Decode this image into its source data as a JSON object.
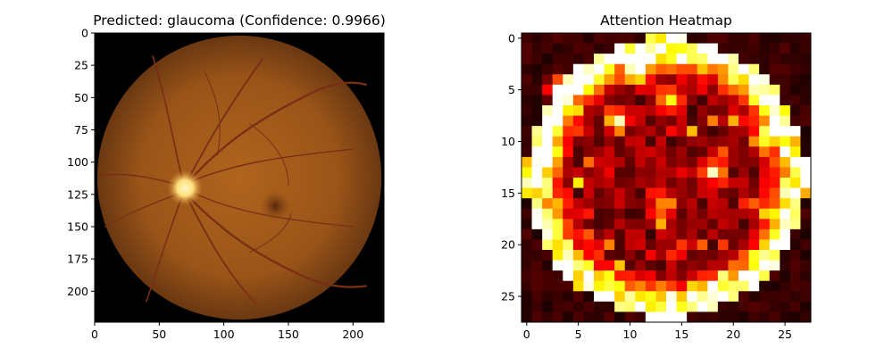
{
  "chart_data": [
    {
      "type": "image",
      "title": "Predicted: glaucoma (Confidence: 0.9966)",
      "xlim": [
        0,
        224
      ],
      "ylim": [
        224,
        0
      ],
      "xticks": [
        "0",
        "50",
        "100",
        "150",
        "200"
      ],
      "yticks": [
        "0",
        "25",
        "50",
        "75",
        "100",
        "125",
        "150",
        "175",
        "200"
      ],
      "image_content": {
        "kind": "retinal fundus photograph",
        "background": "#000000",
        "colors": {
          "rim": "#6a3812",
          "center": "#b0651e",
          "disc": "#fff3b0",
          "macula": "#55270c",
          "vessels": "#7a2f14"
        },
        "fundus_center": [
          112,
          112
        ],
        "fundus_radius": 110,
        "optic_disc_center": [
          70,
          120
        ],
        "optic_disc_radius": 14,
        "macula_center": [
          140,
          134
        ],
        "macula_radius": 12
      }
    },
    {
      "type": "heatmap",
      "title": "Attention Heatmap",
      "colormap": "hot",
      "shape": [
        28,
        28
      ],
      "xlim": [
        -0.5,
        27.5
      ],
      "ylim": [
        27.5,
        -0.5
      ],
      "xticks": [
        "0",
        "5",
        "10",
        "15",
        "20",
        "25"
      ],
      "yticks": [
        "0",
        "5",
        "10",
        "15",
        "20",
        "25"
      ],
      "ring": {
        "center": [
          13.5,
          13.5
        ],
        "radius": 12.8,
        "width": 1.5
      },
      "hot_spots": [
        [
          3,
          11
        ],
        [
          6,
          14
        ],
        [
          5,
          3
        ],
        [
          8,
          9
        ],
        [
          11,
          2
        ],
        [
          13,
          18
        ],
        [
          16,
          13
        ],
        [
          10,
          23
        ]
      ]
    }
  ]
}
